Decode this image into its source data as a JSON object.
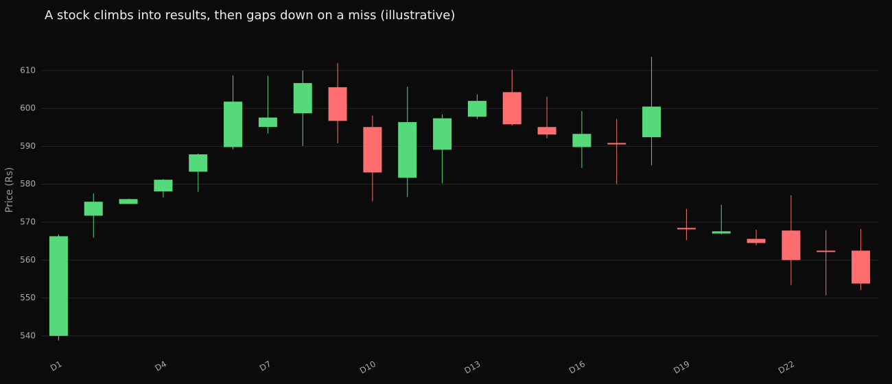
{
  "chart_data": {
    "type": "candlestick",
    "title": "A stock climbs into results, then gaps down on a miss (illustrative)",
    "y_label": "Price (Rs)",
    "categories": [
      "D1",
      null,
      null,
      "D4",
      null,
      null,
      "D7",
      null,
      null,
      "D10",
      null,
      null,
      "D13",
      null,
      null,
      "D16",
      null,
      null,
      "D19",
      null,
      null,
      "D22",
      null,
      null
    ],
    "open": [
      540.1,
      571.8,
      574.9,
      578.2,
      583.4,
      589.9,
      595.2,
      598.8,
      605.5,
      595.0,
      581.8,
      589.2,
      597.9,
      604.2,
      595.0,
      589.9,
      590.8,
      592.5,
      568.4,
      567.1,
      565.5,
      567.7,
      562.4,
      562.4
    ],
    "high": [
      566.8,
      577.6,
      576.2,
      581.4,
      588.1,
      608.7,
      608.6,
      610.0,
      612.0,
      598.1,
      605.7,
      598.4,
      603.7,
      610.2,
      603.1,
      599.3,
      597.2,
      613.6,
      573.5,
      574.6,
      568.0,
      577.1,
      567.9,
      568.2
    ],
    "low": [
      538.8,
      565.9,
      574.8,
      576.5,
      578.0,
      589.2,
      593.4,
      590.1,
      590.8,
      575.5,
      576.7,
      580.2,
      597.2,
      595.5,
      592.1,
      584.3,
      580.0,
      585.0,
      565.3,
      566.8,
      563.9,
      553.4,
      550.7,
      552.1
    ],
    "close": [
      566.2,
      575.3,
      576.0,
      581.1,
      587.8,
      601.7,
      597.5,
      606.6,
      596.8,
      583.2,
      596.3,
      597.3,
      601.9,
      595.9,
      593.2,
      593.2,
      590.6,
      600.4,
      568.2,
      567.5,
      564.6,
      560.1,
      562.3,
      553.9
    ],
    "increasing_color": "#55d97a",
    "decreasing_color": "#ff6e6e",
    "ylim": [
      536,
      621
    ],
    "yticks": [
      540,
      550,
      560,
      570,
      580,
      590,
      600,
      610
    ],
    "grid": true
  }
}
